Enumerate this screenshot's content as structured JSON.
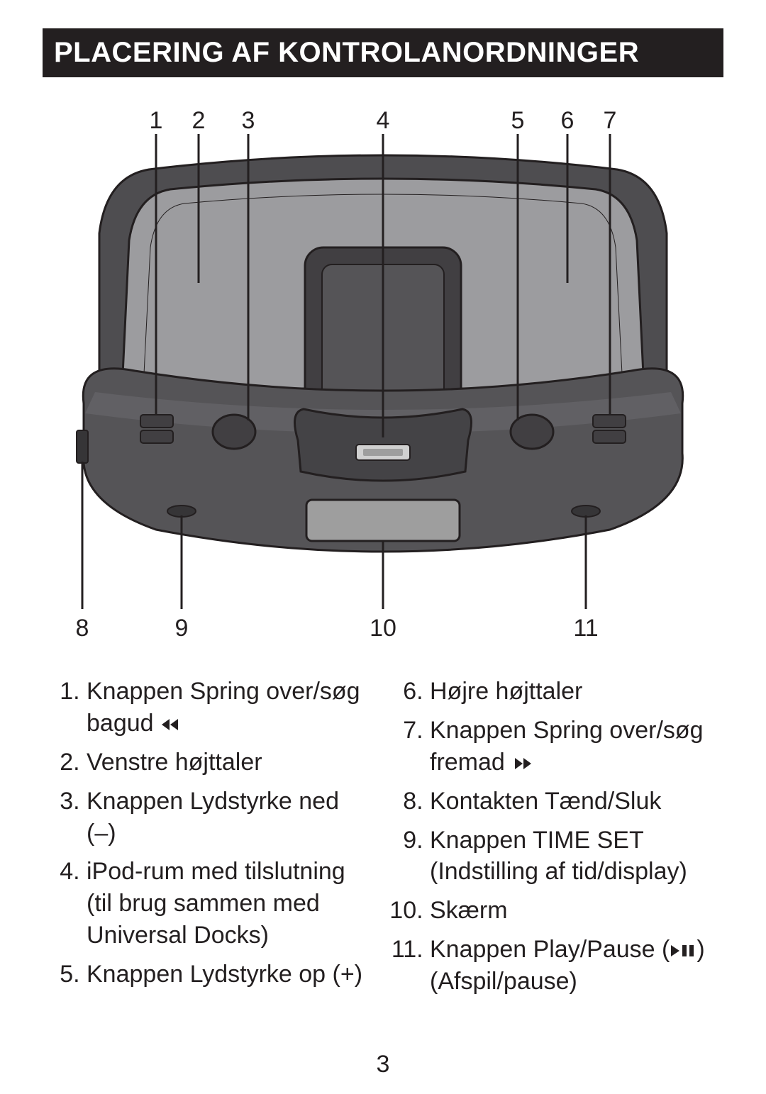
{
  "heading": "PLACERING AF KONTROLANORDNINGER",
  "page_number": "3",
  "figure": {
    "top_labels": [
      "1",
      "2",
      "3",
      "4",
      "5",
      "6",
      "7"
    ],
    "bottom_labels": [
      "8",
      "9",
      "10",
      "11"
    ],
    "colors": {
      "outline": "#231f20",
      "body_dark": "#555457",
      "body_mid": "#616064",
      "speaker_fill": "#9c9c9f",
      "lcd": "#9e9e9e",
      "backplate": "#4e4d50",
      "back_rest": "#413f42",
      "dock_fill": "#444346",
      "connector": "#d0d0d0",
      "shadow": "#363537",
      "text": "#231f20",
      "white": "#ffffff"
    }
  },
  "legend": {
    "left": [
      {
        "n": 1,
        "text": "Knappen Spring over/søg bagud ",
        "icon": "rew"
      },
      {
        "n": 2,
        "text": "Venstre højttaler"
      },
      {
        "n": 3,
        "text": "Knappen Lydstyrke ned (–)"
      },
      {
        "n": 4,
        "text": "iPod-rum med tilslutning (til brug sammen med Universal Docks)"
      },
      {
        "n": 5,
        "text": "Knappen Lydstyrke op (+)"
      }
    ],
    "right": [
      {
        "n": 6,
        "text": "Højre højttaler"
      },
      {
        "n": 7,
        "text": "Knappen Spring over/søg fremad ",
        "icon": "ffwd"
      },
      {
        "n": 8,
        "text": "Kontakten Tænd/Sluk"
      },
      {
        "n": 9,
        "text": "Knappen TIME SET (Indstilling af tid/display)"
      },
      {
        "n": 10,
        "text": "Skærm"
      },
      {
        "n": 11,
        "text": "Knappen Play/Pause (",
        "icon": "playpause",
        "text_after": ") (Afspil/pause)"
      }
    ]
  }
}
